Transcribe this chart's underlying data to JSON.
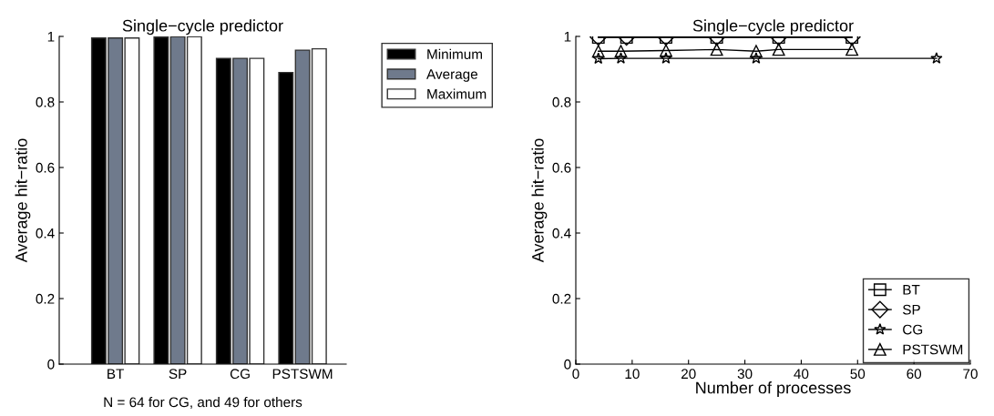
{
  "chart_data": [
    {
      "type": "bar",
      "title": "Single−cycle predictor",
      "ylabel": "Average hit−ratio",
      "categories": [
        "BT",
        "SP",
        "CG",
        "PSTSWM"
      ],
      "ylim": [
        0,
        1
      ],
      "yticks": [
        0,
        0.2,
        0.4,
        0.6,
        0.8,
        1
      ],
      "grid": false,
      "legend": "top right",
      "annotations": [
        "N = 64 for CG, and 49 for others"
      ],
      "series": [
        {
          "name": "Minimum",
          "color": "#000000",
          "values": [
            0.995,
            0.998,
            0.933,
            0.89
          ]
        },
        {
          "name": "Average",
          "color": "#6f7a8c",
          "values": [
            0.995,
            0.999,
            0.933,
            0.958
          ]
        },
        {
          "name": "Maximum",
          "color": "#ffffff",
          "values": [
            0.995,
            0.999,
            0.933,
            0.962
          ]
        }
      ]
    },
    {
      "type": "line",
      "title": "Single−cycle predictor",
      "xlabel": "Number of processes",
      "ylabel": "Average hit−ratio",
      "xlim": [
        0,
        70
      ],
      "xticks": [
        0,
        10,
        20,
        30,
        40,
        50,
        60,
        70
      ],
      "ylim": [
        0,
        1
      ],
      "yticks": [
        0,
        0.2,
        0.4,
        0.6,
        0.8,
        1
      ],
      "grid": false,
      "legend": "bottom right",
      "series": [
        {
          "name": "BT",
          "color": "#000000",
          "marker": "square",
          "x": [
            4,
            9,
            16,
            25,
            36,
            49
          ],
          "values": [
            0.997,
            0.997,
            0.997,
            0.997,
            0.997,
            0.997
          ]
        },
        {
          "name": "SP",
          "color": "#000000",
          "marker": "diamond",
          "x": [
            4,
            9,
            16,
            25,
            36,
            49
          ],
          "values": [
            0.998,
            0.998,
            0.998,
            0.998,
            0.998,
            0.998
          ]
        },
        {
          "name": "CG",
          "color": "#000000",
          "marker": "star",
          "x": [
            4,
            8,
            16,
            32,
            64
          ],
          "values": [
            0.932,
            0.933,
            0.933,
            0.933,
            0.933
          ]
        },
        {
          "name": "PSTSWM",
          "color": "#000000",
          "marker": "triangle",
          "x": [
            4,
            8,
            16,
            25,
            32,
            36,
            49
          ],
          "values": [
            0.955,
            0.955,
            0.957,
            0.96,
            0.955,
            0.96,
            0.96
          ]
        }
      ]
    }
  ]
}
